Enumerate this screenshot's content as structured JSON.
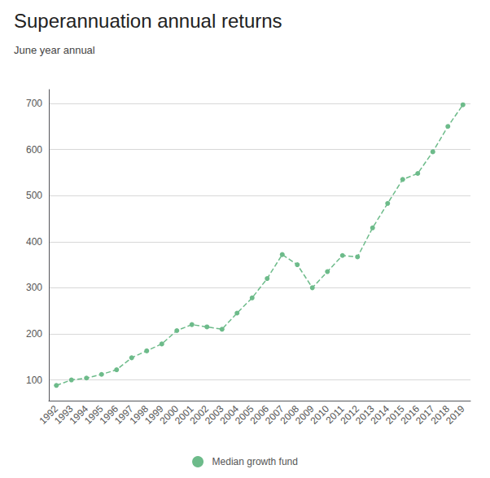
{
  "chart_data": {
    "type": "line",
    "title": "Superannuation annual returns",
    "subtitle": "June year annual",
    "categories": [
      "1992",
      "1993",
      "1994",
      "1995",
      "1996",
      "1997",
      "1998",
      "1999",
      "2000",
      "2001",
      "2002",
      "2003",
      "2004",
      "2005",
      "2006",
      "2007",
      "2008",
      "2009",
      "2010",
      "2011",
      "2012",
      "2013",
      "2014",
      "2015",
      "2016",
      "2017",
      "2018",
      "2019"
    ],
    "series": [
      {
        "name": "Median growth fund",
        "color": "#6dbb8a",
        "line_style": "dashed",
        "marker": "circle",
        "values": [
          88,
          100,
          104,
          112,
          122,
          148,
          163,
          178,
          207,
          220,
          215,
          210,
          245,
          278,
          320,
          372,
          350,
          300,
          335,
          370,
          367,
          430,
          483,
          535,
          548,
          595,
          650,
          697
        ]
      }
    ],
    "ylim": [
      55,
      730
    ],
    "yticks": [
      100,
      200,
      300,
      400,
      500,
      600,
      700
    ],
    "grid": true,
    "legend": "bottom"
  }
}
